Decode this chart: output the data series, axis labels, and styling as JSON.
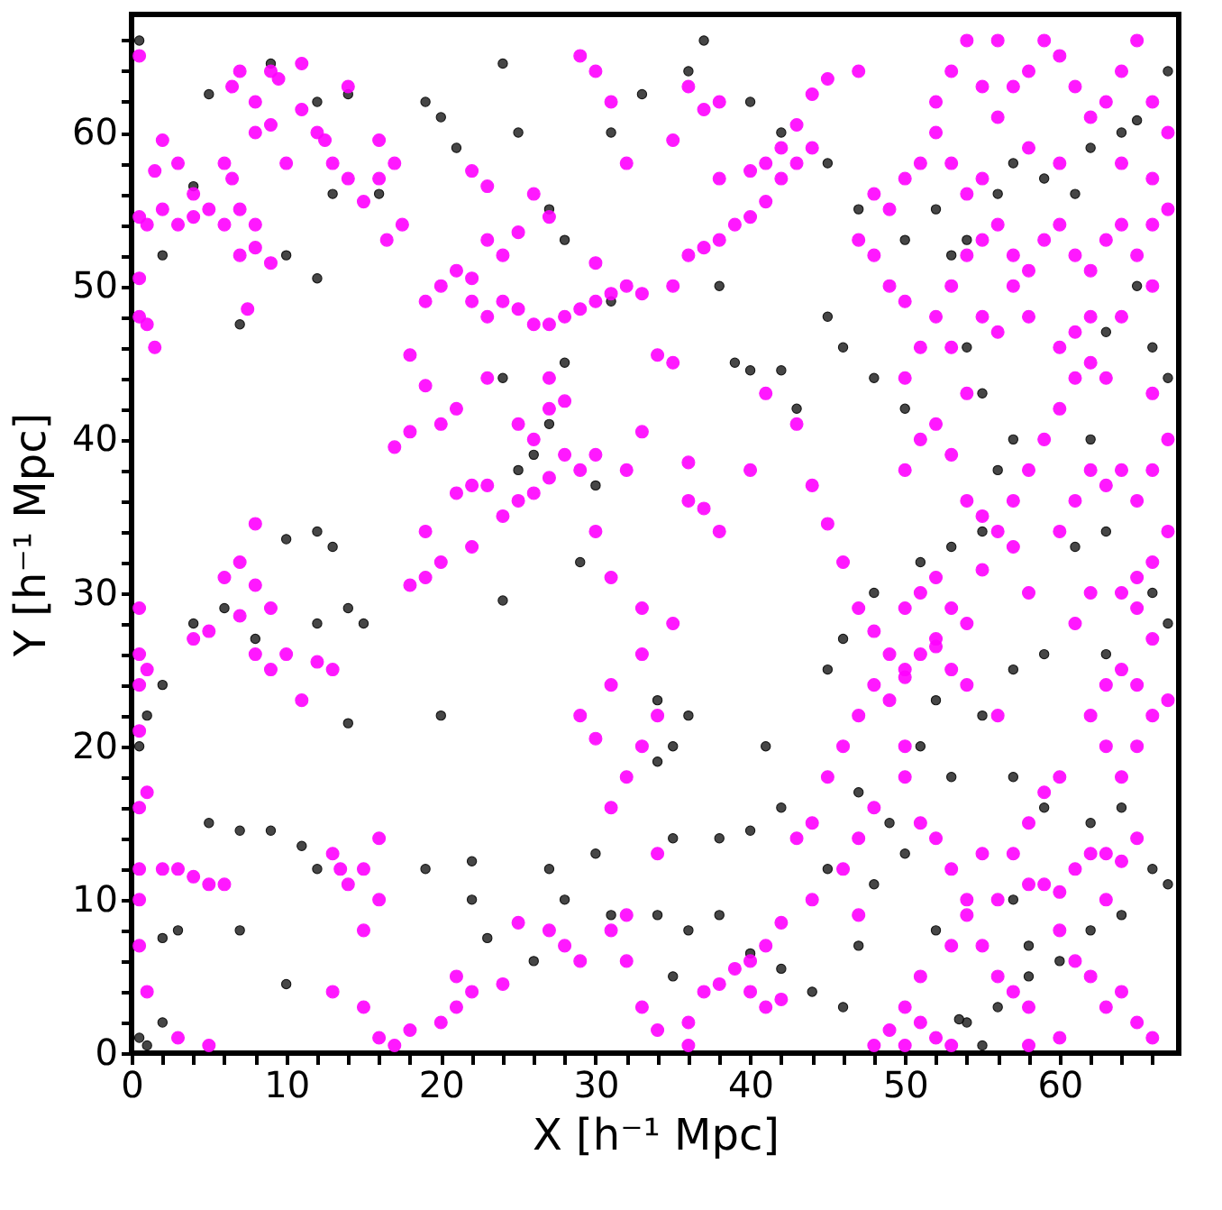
{
  "chart_data": {
    "type": "scatter",
    "xlabel": "X [h⁻¹ Mpc]",
    "ylabel": "Y [h⁻¹ Mpc]",
    "xlim": [
      0,
      67.7
    ],
    "ylim": [
      0,
      67.7
    ],
    "xticks": [
      0,
      {
        "value": 2,
        "label": null
      },
      {
        "value": 4,
        "label": null
      },
      {
        "value": 6,
        "label": null
      },
      {
        "value": 8,
        "label": null
      },
      10,
      {
        "value": 12,
        "label": null
      },
      {
        "value": 14,
        "label": null
      },
      {
        "value": 16,
        "label": null
      },
      {
        "value": 18,
        "label": null
      },
      20,
      {
        "value": 22,
        "label": null
      },
      {
        "value": 24,
        "label": null
      },
      {
        "value": 26,
        "label": null
      },
      {
        "value": 28,
        "label": null
      },
      30,
      {
        "value": 32,
        "label": null
      },
      {
        "value": 34,
        "label": null
      },
      {
        "value": 36,
        "label": null
      },
      {
        "value": 38,
        "label": null
      },
      40,
      {
        "value": 42,
        "label": null
      },
      {
        "value": 44,
        "label": null
      },
      {
        "value": 46,
        "label": null
      },
      {
        "value": 48,
        "label": null
      },
      50,
      {
        "value": 52,
        "label": null
      },
      {
        "value": 54,
        "label": null
      },
      {
        "value": 56,
        "label": null
      },
      {
        "value": 58,
        "label": null
      },
      60,
      {
        "value": 62,
        "label": null
      },
      {
        "value": 64,
        "label": null
      },
      {
        "value": 66,
        "label": null
      }
    ],
    "yticks": [
      0,
      {
        "value": 2,
        "label": null
      },
      {
        "value": 4,
        "label": null
      },
      {
        "value": 6,
        "label": null
      },
      {
        "value": 8,
        "label": null
      },
      10,
      {
        "value": 12,
        "label": null
      },
      {
        "value": 14,
        "label": null
      },
      {
        "value": 16,
        "label": null
      },
      {
        "value": 18,
        "label": null
      },
      20,
      {
        "value": 22,
        "label": null
      },
      {
        "value": 24,
        "label": null
      },
      {
        "value": 26,
        "label": null
      },
      {
        "value": 28,
        "label": null
      },
      30,
      {
        "value": 32,
        "label": null
      },
      {
        "value": 34,
        "label": null
      },
      {
        "value": 36,
        "label": null
      },
      {
        "value": 38,
        "label": null
      },
      40,
      {
        "value": 42,
        "label": null
      },
      {
        "value": 44,
        "label": null
      },
      {
        "value": 46,
        "label": null
      },
      {
        "value": 48,
        "label": null
      },
      50,
      {
        "value": 52,
        "label": null
      },
      {
        "value": 54,
        "label": null
      },
      {
        "value": 56,
        "label": null
      },
      {
        "value": 58,
        "label": null
      },
      60,
      {
        "value": 62,
        "label": null
      },
      {
        "value": 64,
        "label": null
      },
      {
        "value": 66,
        "label": null
      }
    ],
    "grid": false,
    "legend": false,
    "marker": "circle",
    "series": [
      {
        "color": "#333333",
        "x": [
          0.5,
          5,
          9,
          12,
          14,
          4,
          2,
          10,
          12,
          7,
          13,
          16,
          19,
          20,
          21,
          24,
          25,
          27,
          28,
          31,
          33,
          36,
          37,
          40,
          42,
          45,
          47,
          38,
          39,
          40,
          42,
          43,
          31,
          28,
          27,
          26,
          24,
          25,
          30,
          29,
          24,
          20,
          14,
          10,
          12,
          13,
          14,
          15,
          12,
          8,
          6,
          4,
          2,
          1,
          0.5,
          5,
          7,
          9,
          11,
          12,
          3,
          2,
          7,
          10,
          2,
          0.5,
          1,
          19,
          22,
          22,
          23,
          26,
          27,
          30,
          28,
          31,
          34,
          35,
          36,
          38,
          40,
          42,
          44,
          46,
          47,
          48,
          50,
          49,
          47,
          45,
          36,
          35,
          34,
          34,
          35,
          38,
          40,
          42,
          41,
          45,
          46,
          48,
          51,
          53,
          55,
          56,
          57,
          55,
          54,
          50,
          48,
          46,
          45,
          50,
          52,
          53,
          54,
          56,
          57,
          59,
          61,
          62,
          64,
          65,
          67,
          65,
          63,
          66,
          67,
          62,
          61,
          63,
          66,
          67,
          63,
          59,
          57,
          55,
          52,
          51,
          53,
          57,
          59,
          62,
          64,
          66,
          67,
          64,
          62,
          60,
          58,
          56,
          54,
          53.5,
          55,
          58,
          57,
          52
        ],
        "values": [
          66,
          62.5,
          64.5,
          62,
          62.5,
          56.5,
          52,
          52,
          50.5,
          47.5,
          56,
          56,
          62,
          61,
          59,
          64.5,
          60,
          55,
          53,
          60,
          62.5,
          64,
          66,
          62,
          60,
          58,
          55,
          50,
          45,
          44.5,
          44.5,
          42,
          49,
          45,
          41,
          39,
          44,
          38,
          37,
          32,
          29.5,
          22,
          21.5,
          33.5,
          34,
          33,
          29,
          28,
          28,
          27,
          29,
          28,
          24,
          22,
          20,
          15,
          14.5,
          14.5,
          13.5,
          12,
          8,
          7.5,
          8,
          4.5,
          2,
          1,
          0.5,
          12,
          12.5,
          10,
          7.5,
          6,
          12,
          13,
          10,
          9,
          9,
          5,
          8,
          9,
          6.5,
          5.5,
          4,
          3,
          7,
          11,
          13,
          15,
          17,
          12,
          22,
          20,
          19,
          23,
          14,
          14,
          14.5,
          16,
          20,
          25,
          27,
          30,
          32,
          33,
          34,
          38,
          40,
          43,
          46,
          42,
          44,
          46,
          48,
          53,
          55,
          52,
          53,
          56,
          58,
          57,
          56,
          59,
          60,
          60.8,
          64,
          50,
          47,
          46,
          44,
          40,
          33,
          34,
          30,
          28,
          26,
          26,
          25,
          22,
          23,
          20,
          18,
          18,
          16,
          15,
          16,
          12,
          11,
          9,
          8,
          6,
          5,
          3,
          2,
          2.2,
          0.5,
          7,
          10,
          8
        ]
      },
      {
        "color": "#ff00ff",
        "x": [
          0.5,
          2,
          1.5,
          3,
          4,
          5,
          6,
          2,
          1,
          0.5,
          3,
          4,
          7,
          8,
          8,
          7,
          9,
          6.5,
          7,
          8,
          9,
          9.5,
          11,
          12,
          12.5,
          13,
          14,
          15,
          11,
          14,
          16,
          17,
          16,
          17.5,
          16.5,
          0.5,
          0.5,
          1,
          1.5,
          8,
          9,
          10,
          6,
          6.5,
          7.5,
          18,
          19,
          20,
          21,
          23,
          20,
          21,
          22,
          24,
          25,
          26,
          27,
          28,
          29,
          30,
          31,
          32,
          33,
          22,
          23,
          19,
          23,
          24,
          25,
          30,
          35,
          36,
          37,
          38,
          39,
          40,
          41,
          42,
          43,
          44,
          38,
          40,
          41,
          42,
          43,
          44,
          45,
          47,
          36,
          37,
          38,
          35,
          29,
          30,
          31,
          32,
          27,
          26,
          22,
          23,
          17,
          18,
          21,
          22,
          23,
          24,
          25,
          26,
          27,
          28,
          29,
          30,
          26,
          27,
          28,
          25,
          27,
          22,
          19,
          20,
          18,
          19,
          30,
          31,
          33,
          33,
          34,
          33,
          32,
          31,
          30,
          29,
          31,
          32,
          33,
          34,
          35,
          36,
          36,
          37,
          38,
          35,
          40,
          41,
          43,
          44,
          45,
          46,
          47,
          48,
          47,
          46,
          45,
          44,
          43,
          44,
          42,
          41,
          40,
          39,
          38,
          37,
          36,
          40,
          41,
          42,
          36,
          34,
          33,
          32,
          31,
          34,
          32,
          29,
          28,
          27,
          25,
          24,
          22,
          21,
          20,
          18,
          17,
          16,
          21,
          8,
          7,
          6,
          8,
          9,
          7,
          5,
          4,
          8,
          9,
          10,
          11,
          12,
          13,
          0.5,
          0.5,
          1,
          0.5,
          0.5,
          1,
          0.5,
          0.5,
          0.5,
          0.5,
          1,
          2,
          4,
          5,
          6,
          3,
          13,
          13.5,
          14,
          15,
          16,
          16,
          15,
          13,
          15,
          3,
          5,
          48,
          49,
          50,
          49,
          50,
          51,
          52,
          53,
          54,
          52,
          51,
          50,
          50,
          50,
          51,
          52,
          53,
          54,
          55,
          56,
          57,
          58,
          56,
          58,
          59,
          60,
          61,
          62,
          63,
          64,
          65,
          63,
          60,
          61,
          62,
          63,
          64,
          65,
          66,
          60,
          58,
          53,
          52,
          51,
          50,
          49,
          48,
          50,
          51,
          53,
          47,
          46,
          47,
          48,
          64,
          65,
          66,
          67,
          65,
          64,
          63,
          62,
          63,
          60,
          59,
          58,
          57,
          55,
          54,
          61,
          62,
          64,
          65,
          66,
          67,
          66,
          65,
          55,
          56,
          57,
          57,
          58,
          59,
          60,
          61,
          60,
          61,
          62,
          63,
          63,
          64,
          65,
          66,
          67,
          66,
          62,
          61,
          60,
          58,
          56,
          54,
          53,
          52,
          50,
          51,
          52,
          53,
          54,
          55,
          54,
          50,
          51,
          52,
          53,
          54,
          55,
          56,
          57,
          58,
          59,
          60,
          61,
          62,
          63,
          64,
          65,
          66,
          67,
          66,
          64,
          62,
          57,
          58,
          56,
          55,
          53,
          50,
          49,
          48,
          47,
          48,
          49,
          50,
          51,
          52,
          53,
          54,
          55,
          56,
          57,
          58,
          59,
          60,
          61,
          62,
          63,
          64,
          65,
          66,
          67,
          66,
          64,
          60,
          58,
          56,
          54,
          53,
          52,
          55
        ],
        "values": [
          65,
          59.5,
          57.5,
          58,
          56,
          55,
          54,
          55,
          54,
          54.5,
          54,
          54.5,
          55,
          54,
          52.5,
          52,
          51.5,
          63,
          64,
          62,
          64,
          63.5,
          61.5,
          60,
          59.5,
          58,
          57,
          55.5,
          64.5,
          63,
          59.5,
          58,
          57,
          54,
          53,
          50.5,
          48,
          47.5,
          46,
          60,
          60.5,
          58,
          58,
          57,
          48.5,
          45.5,
          43.5,
          41,
          42,
          44,
          50,
          51,
          50.5,
          49,
          48.5,
          47.5,
          47.5,
          48,
          48.5,
          49,
          49.5,
          50,
          49.5,
          49,
          48,
          49,
          53,
          52,
          53.5,
          51.5,
          50,
          52,
          52.5,
          53,
          54,
          54.5,
          55.5,
          57,
          58,
          59,
          57,
          57.5,
          58,
          59,
          60.5,
          62.5,
          63.5,
          64,
          63,
          61.5,
          62,
          59.5,
          65,
          64,
          62,
          58,
          54.5,
          56,
          57.5,
          56.5,
          39.5,
          40.5,
          36.5,
          37,
          37,
          35,
          36,
          36.5,
          37.5,
          39,
          38,
          39,
          40,
          42,
          42.5,
          41,
          44,
          33,
          31,
          32,
          30.5,
          34,
          34,
          31,
          29,
          26,
          22,
          20,
          18,
          16,
          20.5,
          22,
          24,
          38,
          40.5,
          45.5,
          45,
          38.5,
          36,
          35.5,
          34,
          28,
          38,
          43,
          41,
          37,
          34.5,
          32,
          29,
          24,
          22,
          20,
          18,
          15,
          14,
          10,
          8.5,
          7,
          6,
          5.5,
          4.5,
          4,
          2,
          4,
          3,
          3.5,
          0.5,
          1.5,
          3,
          6,
          8,
          13,
          9,
          6,
          7,
          8,
          8.5,
          4.5,
          4,
          3,
          2,
          1.5,
          0.5,
          1,
          5,
          34.5,
          32,
          31,
          30.5,
          29,
          28.5,
          27.5,
          27,
          26,
          25,
          26,
          23,
          25.5,
          25,
          29,
          26,
          25,
          24,
          21,
          17,
          16,
          12,
          10,
          7,
          4,
          12,
          11.5,
          11,
          11,
          12,
          13,
          12,
          11,
          12,
          14,
          10,
          8,
          4,
          3,
          1,
          0.5,
          27.5,
          26,
          25,
          23,
          29,
          30,
          31,
          29,
          28,
          27,
          26,
          24.5,
          20,
          18,
          15,
          14,
          12,
          10,
          7,
          5,
          4,
          3,
          10,
          11,
          11,
          10.5,
          12,
          13,
          13,
          12.5,
          14,
          10,
          8,
          6,
          5,
          3,
          4,
          2,
          1,
          1,
          0.5,
          0.5,
          1,
          2,
          3,
          1.5,
          0.5,
          0.5,
          5,
          7,
          9,
          12,
          14,
          16,
          18,
          20,
          22,
          23,
          24,
          25,
          24,
          22,
          20,
          18,
          17,
          15,
          13,
          13,
          9,
          28,
          30,
          30,
          31,
          32,
          34,
          27,
          29,
          31.5,
          34,
          33,
          36,
          38,
          40,
          42,
          44,
          46,
          47,
          45,
          44,
          37,
          38,
          36,
          38,
          40,
          43,
          38,
          36,
          34,
          30,
          22,
          24,
          25,
          26.5,
          38,
          40,
          41,
          39,
          36,
          35,
          43,
          44,
          46,
          48,
          50,
          52,
          53,
          54,
          52,
          51,
          53,
          54,
          52,
          51,
          53,
          54,
          52,
          54,
          55,
          50,
          48,
          48,
          50,
          48,
          47,
          48,
          46,
          49,
          50,
          52,
          53,
          56,
          55,
          57,
          58,
          60,
          58,
          56,
          57,
          61,
          63,
          64,
          66,
          65,
          63,
          61,
          62,
          64,
          66,
          62,
          60,
          57,
          58,
          58,
          59,
          66,
          66,
          64,
          62,
          63
        ]
      }
    ]
  }
}
